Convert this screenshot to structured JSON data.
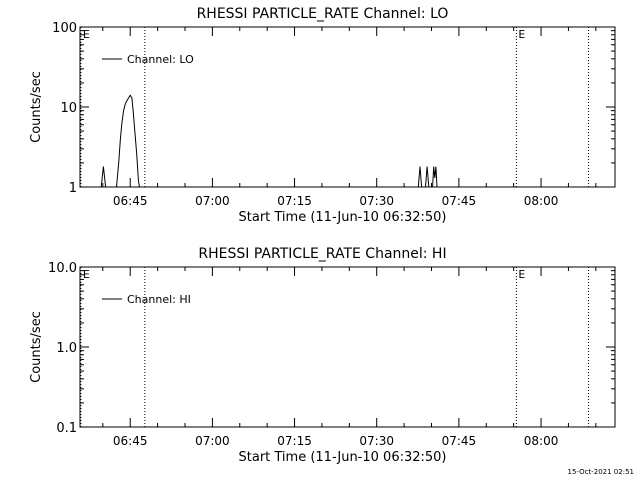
{
  "footer": {
    "date": "15-Oct-2021 02:51"
  },
  "chart_data": [
    {
      "type": "line",
      "title": "RHESSI PARTICLE_RATE Channel: LO",
      "xlabel": "Start Time (11-Jun-10 06:32:50)",
      "ylabel": "Counts/sec",
      "yscale": "log",
      "xlim": [
        "06:35:50",
        "08:13:30"
      ],
      "ylim": [
        1,
        100
      ],
      "x_ticks": [
        "06:45",
        "07:00",
        "07:15",
        "07:30",
        "07:45",
        "08:00"
      ],
      "y_ticks": [
        "1",
        "10",
        "100"
      ],
      "legend": {
        "position": "top-left",
        "entries": [
          "Channel: LO"
        ]
      },
      "series": [
        {
          "name": "Channel: LO",
          "points": [
            [
              "06:39:42",
              1.0
            ],
            [
              "06:40:06",
              1.8
            ],
            [
              "06:40:30",
              1.0
            ],
            [
              "06:42:30",
              1.0
            ],
            [
              "06:42:54",
              2.0
            ],
            [
              "06:43:12",
              4.0
            ],
            [
              "06:43:30",
              6.5
            ],
            [
              "06:43:48",
              9.0
            ],
            [
              "06:44:06",
              11.0
            ],
            [
              "06:44:24",
              12.0
            ],
            [
              "06:44:42",
              13.0
            ],
            [
              "06:45:00",
              14.0
            ],
            [
              "06:45:18",
              13.0
            ],
            [
              "06:45:36",
              8.0
            ],
            [
              "06:45:54",
              4.5
            ],
            [
              "06:46:12",
              2.5
            ],
            [
              "06:46:30",
              1.2
            ],
            [
              "06:46:42",
              1.0
            ],
            [
              "07:37:36",
              1.0
            ],
            [
              "07:37:54",
              1.8
            ],
            [
              "07:38:12",
              1.0
            ],
            [
              "07:38:54",
              1.0
            ],
            [
              "07:39:12",
              1.8
            ],
            [
              "07:39:30",
              1.0
            ],
            [
              "07:40:12",
              1.0
            ],
            [
              "07:40:24",
              1.8
            ],
            [
              "07:40:36",
              1.3
            ],
            [
              "07:40:48",
              1.8
            ],
            [
              "07:41:00",
              1.0
            ]
          ]
        }
      ],
      "markers": [
        {
          "time": "06:36:00",
          "label": "E"
        },
        {
          "time": "06:47:40",
          "label": ""
        },
        {
          "time": "07:55:30",
          "label": "E"
        },
        {
          "time": "08:08:40",
          "label": ""
        }
      ]
    },
    {
      "type": "line",
      "title": "RHESSI PARTICLE_RATE Channel: HI",
      "xlabel": "Start Time (11-Jun-10 06:32:50)",
      "ylabel": "Counts/sec",
      "yscale": "log",
      "xlim": [
        "06:35:50",
        "08:13:30"
      ],
      "ylim": [
        0.1,
        10
      ],
      "x_ticks": [
        "06:45",
        "07:00",
        "07:15",
        "07:30",
        "07:45",
        "08:00"
      ],
      "y_ticks": [
        "0.1",
        "1.0",
        "10.0"
      ],
      "legend": {
        "position": "top-left",
        "entries": [
          "Channel: HI"
        ]
      },
      "series": [
        {
          "name": "Channel: HI",
          "points": []
        }
      ],
      "markers": [
        {
          "time": "06:36:00",
          "label": "E"
        },
        {
          "time": "06:47:40",
          "label": ""
        },
        {
          "time": "07:55:30",
          "label": "E"
        },
        {
          "time": "08:08:40",
          "label": ""
        }
      ]
    }
  ]
}
